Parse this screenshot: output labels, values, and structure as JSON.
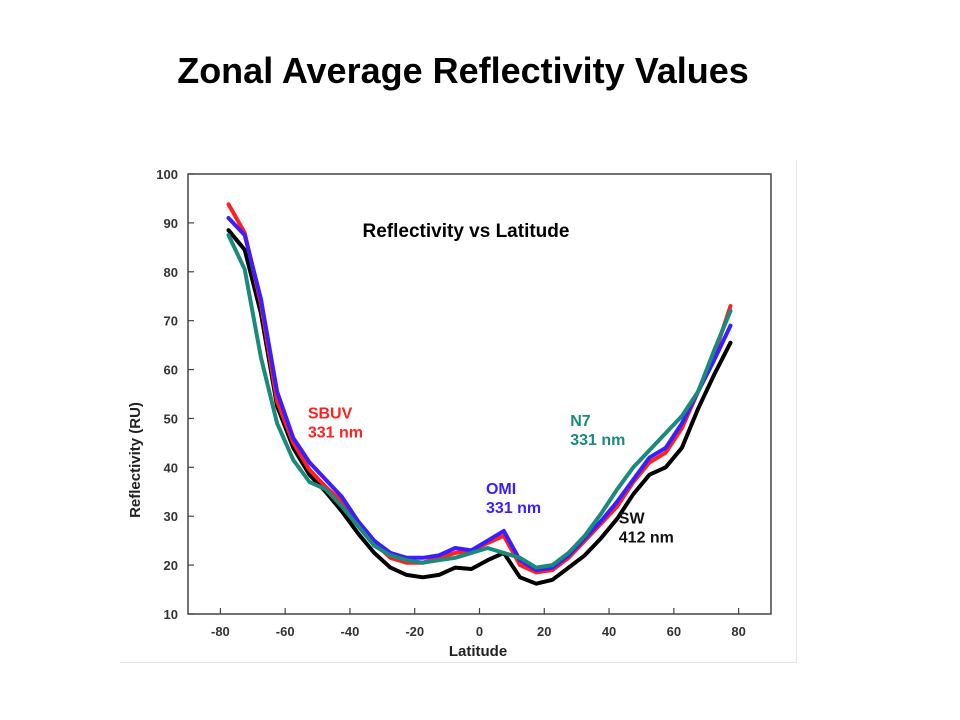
{
  "slide": {
    "title": "Zonal Average Reflectivity Values"
  },
  "chart_data": {
    "type": "line",
    "title": "Reflectivity vs Latitude",
    "xlabel": "Latitude",
    "ylabel": "Reflectivity (RU)",
    "xlim": [
      -90,
      90
    ],
    "ylim": [
      10,
      100
    ],
    "xticks": [
      -80,
      -60,
      -40,
      -20,
      0,
      20,
      40,
      60,
      80
    ],
    "yticks": [
      10,
      20,
      30,
      40,
      50,
      60,
      70,
      80,
      90,
      100
    ],
    "grid": false,
    "legend": "none",
    "series": [
      {
        "name": "SW 412 nm",
        "color": "#000000",
        "x": [
          -77.5,
          -72.5,
          -67.5,
          -62.5,
          -57.5,
          -52.5,
          -47.5,
          -42.5,
          -37.5,
          -32.5,
          -27.5,
          -22.5,
          -17.5,
          -12.5,
          -7.5,
          -2.5,
          2.5,
          7.5,
          12.5,
          17.5,
          22.5,
          27.5,
          32.5,
          37.5,
          42.5,
          47.5,
          52.5,
          57.5,
          62.5,
          67.5,
          72.5,
          77.5
        ],
        "y": [
          88.5,
          84.5,
          71.5,
          52.5,
          44,
          38.5,
          35,
          31,
          26.5,
          22.5,
          19.5,
          18,
          17.5,
          18,
          19.5,
          19.2,
          21,
          22.5,
          17.5,
          16.2,
          17,
          19.5,
          22,
          25.5,
          29.5,
          34.5,
          38.5,
          40,
          44,
          52,
          59,
          65.5
        ]
      },
      {
        "name": "SBUV 331 nm",
        "color": "#ff2020",
        "x": [
          -77.5,
          -72.5,
          -67.5,
          -62.5,
          -57.5,
          -52.5,
          -47.5,
          -42.5,
          -37.5,
          -32.5,
          -27.5,
          -22.5,
          -17.5,
          -12.5,
          -7.5,
          -2.5,
          2.5,
          7.5,
          12.5,
          17.5,
          22.5,
          27.5,
          32.5,
          37.5,
          42.5,
          47.5,
          52.5,
          57.5,
          62.5,
          67.5,
          72.5,
          77.5
        ],
        "y": [
          93.8,
          88,
          73.5,
          53.5,
          45,
          39.5,
          36,
          33,
          28.5,
          24.5,
          21.5,
          20.5,
          20.5,
          21.5,
          22.5,
          23,
          24.5,
          26,
          20,
          18.5,
          19,
          21.5,
          25,
          28.5,
          32,
          37,
          41,
          43,
          48,
          55.5,
          63,
          73
        ]
      },
      {
        "name": "OMI 331 nm",
        "color": "#3a1eff",
        "x": [
          -77.5,
          -72.5,
          -67.5,
          -62.5,
          -57.5,
          -52.5,
          -47.5,
          -42.5,
          -37.5,
          -32.5,
          -27.5,
          -22.5,
          -17.5,
          -12.5,
          -7.5,
          -2.5,
          2.5,
          7.5,
          12.5,
          17.5,
          22.5,
          27.5,
          32.5,
          37.5,
          42.5,
          47.5,
          52.5,
          57.5,
          62.5,
          67.5,
          72.5,
          77.5
        ],
        "y": [
          91,
          87.5,
          74.5,
          55.5,
          46,
          41,
          37.5,
          34,
          29,
          25,
          22.5,
          21.5,
          21.5,
          22,
          23.5,
          23,
          25,
          27,
          21,
          19,
          19.5,
          22,
          25.5,
          29,
          33,
          37.5,
          42,
          44,
          49,
          55.5,
          62,
          69
        ]
      },
      {
        "name": "N7 331 nm",
        "color": "#1a8a7a",
        "x": [
          -77.5,
          -72.5,
          -67.5,
          -62.5,
          -57.5,
          -52.5,
          -47.5,
          -42.5,
          -37.5,
          -32.5,
          -27.5,
          -22.5,
          -17.5,
          -12.5,
          -7.5,
          -2.5,
          2.5,
          7.5,
          12.5,
          17.5,
          22.5,
          27.5,
          32.5,
          37.5,
          42.5,
          47.5,
          52.5,
          57.5,
          62.5,
          67.5,
          72.5,
          77.5
        ],
        "y": [
          87.5,
          80.5,
          62.5,
          49,
          41.5,
          37,
          35.5,
          32,
          28,
          24,
          22,
          21,
          20.5,
          21,
          21.5,
          22.5,
          23.5,
          22.5,
          21.5,
          19.5,
          20,
          22.5,
          26,
          30.5,
          35.5,
          40,
          43.5,
          47,
          50.5,
          55.5,
          64,
          72
        ]
      }
    ],
    "annotations": [
      {
        "lines": [
          "SBUV",
          "331 nm"
        ],
        "color": "#ff2020",
        "x": -53,
        "y": 50
      },
      {
        "lines": [
          "OMI",
          "331 nm"
        ],
        "color": "#3a1eff",
        "x": 2,
        "y": 34.5
      },
      {
        "lines": [
          "N7",
          "331 nm"
        ],
        "color": "#1a8a7a",
        "x": 28,
        "y": 48.5
      },
      {
        "lines": [
          "SW",
          "412 nm"
        ],
        "color": "#111111",
        "x": 43,
        "y": 28.5
      }
    ]
  }
}
